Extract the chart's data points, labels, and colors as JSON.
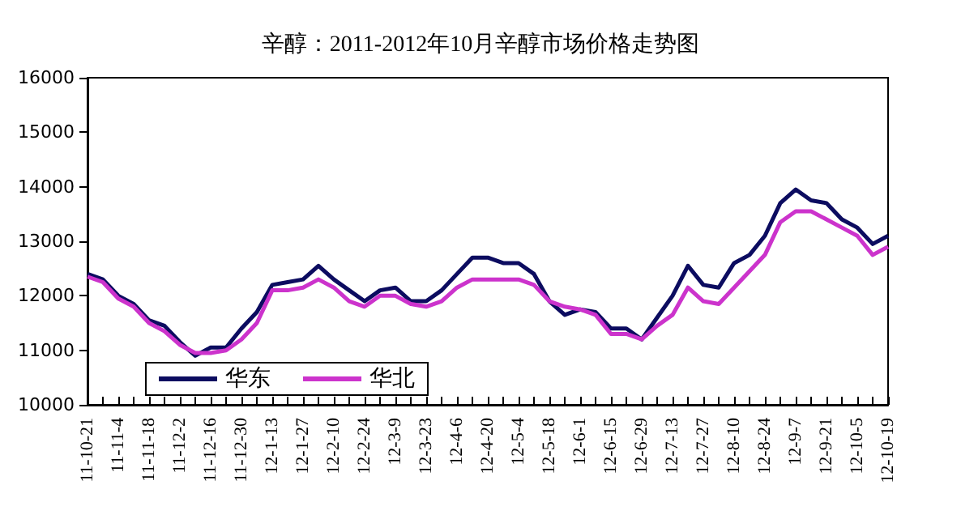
{
  "chart_data": {
    "type": "line",
    "title": "辛醇：2011-2012年10月辛醇市场价格走势图",
    "categories": [
      "11-10-21",
      null,
      "11-11-4",
      null,
      "11-11-18",
      null,
      "11-12-2",
      null,
      "11-12-16",
      null,
      "11-12-30",
      null,
      "12-1-13",
      null,
      "12-1-27",
      null,
      "12-2-10",
      null,
      "12-2-24",
      null,
      "12-3-9",
      null,
      "12-3-23",
      null,
      "12-4-6",
      null,
      "12-4-20",
      null,
      "12-5-4",
      null,
      "12-5-18",
      null,
      "12-6-1",
      null,
      "12-6-15",
      null,
      "12-6-29",
      null,
      "12-7-13",
      null,
      "12-7-27",
      null,
      "12-8-10",
      null,
      "12-8-24",
      null,
      "12-9-7",
      null,
      "12-9-21",
      null,
      "12-10-5",
      null,
      "12-10-19"
    ],
    "series": [
      {
        "name": "华东",
        "color": "#0c0c60",
        "values": [
          12400,
          12300,
          12000,
          11850,
          11550,
          11450,
          11150,
          10900,
          11050,
          11050,
          11400,
          11700,
          12200,
          12250,
          12300,
          12550,
          12300,
          12100,
          11900,
          12100,
          12150,
          11900,
          11900,
          12100,
          12400,
          12700,
          12700,
          12600,
          12600,
          12400,
          11900,
          11650,
          11750,
          11700,
          11400,
          11400,
          11200,
          11600,
          12000,
          12550,
          12200,
          12150,
          12600,
          12750,
          13100,
          13700,
          13950,
          13750,
          13700,
          13400,
          13250,
          12950,
          13100
        ]
      },
      {
        "name": "华北",
        "color": "#cc33cc",
        "values": [
          12350,
          12250,
          11950,
          11800,
          11500,
          11350,
          11100,
          10950,
          10950,
          11000,
          11200,
          11500,
          12100,
          12100,
          12150,
          12300,
          12150,
          11900,
          11800,
          12000,
          12000,
          11850,
          11800,
          11900,
          12150,
          12300,
          12300,
          12300,
          12300,
          12200,
          11900,
          11800,
          11750,
          11650,
          11300,
          11300,
          11200,
          11450,
          11650,
          12150,
          11900,
          11850,
          12150,
          12450,
          12750,
          13350,
          13550,
          13550,
          13400,
          13250,
          13100,
          12750,
          12900
        ]
      }
    ],
    "ylim": [
      10000,
      16000
    ],
    "yticks": [
      10000,
      11000,
      12000,
      13000,
      14000,
      15000,
      16000
    ],
    "grid": false,
    "legend": "bottom left",
    "marker": "none",
    "line_style": "solid"
  }
}
